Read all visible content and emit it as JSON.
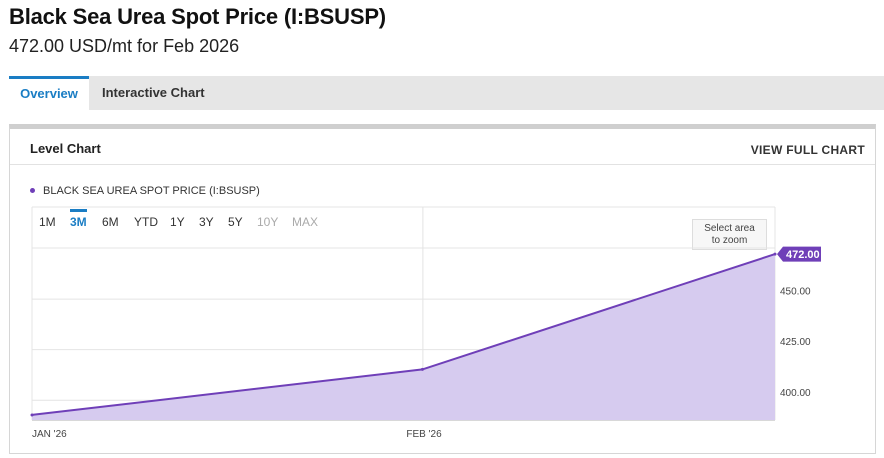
{
  "header": {
    "title": "Black Sea Urea Spot Price (I:BSUSP)",
    "subtitle": "472.00 USD/mt for Feb 2026"
  },
  "tabs": [
    {
      "label": "Overview",
      "active": true
    },
    {
      "label": "Interactive Chart",
      "active": false
    }
  ],
  "panel": {
    "title": "Level Chart",
    "view_full_label": "VIEW FULL CHART"
  },
  "legend": {
    "label": "BLACK SEA UREA SPOT PRICE (I:BSUSP)",
    "color": "#6f3fb8"
  },
  "ranges": [
    {
      "label": "1M",
      "state": "normal"
    },
    {
      "label": "3M",
      "state": "active"
    },
    {
      "label": "6M",
      "state": "normal"
    },
    {
      "label": "YTD",
      "state": "normal"
    },
    {
      "label": "1Y",
      "state": "normal"
    },
    {
      "label": "3Y",
      "state": "normal"
    },
    {
      "label": "5Y",
      "state": "normal"
    },
    {
      "label": "10Y",
      "state": "disabled"
    },
    {
      "label": "MAX",
      "state": "disabled"
    }
  ],
  "zoom_hint": {
    "line1": "Select area",
    "line2": "to zoom"
  },
  "chart_data": {
    "type": "area",
    "title": "",
    "xlabel": "",
    "ylabel": "",
    "x_ticks": [
      "JAN '26",
      "FEB '26"
    ],
    "y_ticks": [
      "400.00",
      "425.00",
      "450.00"
    ],
    "ylim": [
      390,
      475
    ],
    "series": [
      {
        "name": "BLACK SEA UREA SPOT PRICE (I:BSUSP)",
        "x": [
          "2026-01-01",
          "2026-02-01",
          "2026-03-01"
        ],
        "y": [
          392.5,
          415,
          472
        ]
      }
    ],
    "last_value_label": "472.00",
    "line_color": "#6f3fb8",
    "fill_color": "#d6cbef",
    "grid": true
  }
}
